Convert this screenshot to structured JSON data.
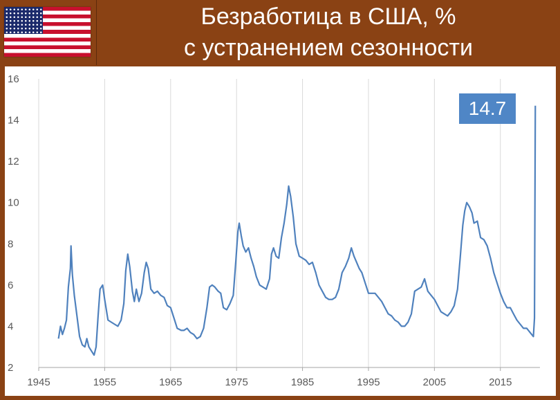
{
  "header": {
    "title_line1": "Безработица в США, %",
    "title_line2": "с устранением сезонности",
    "flag_icon": "us-flag-icon"
  },
  "colors": {
    "background": "#8a4214",
    "line": "#4f81bd",
    "annotation": "#4f86c6",
    "grid": "#d9d9d9"
  },
  "chart_data": {
    "type": "line",
    "title": "Безработица в США, %",
    "subtitle": "с устранением сезонности",
    "xlabel": "",
    "ylabel": "",
    "xlim": [
      1945,
      2021
    ],
    "ylim": [
      2,
      16
    ],
    "x_ticks": [
      1945,
      1955,
      1965,
      1975,
      1985,
      1995,
      2005,
      2015
    ],
    "y_ticks": [
      2,
      4,
      6,
      8,
      10,
      12,
      14,
      16
    ],
    "grid": "vertical",
    "legend": "none",
    "annotation": {
      "x": 2020.3,
      "y": 14.7,
      "label": "14.7"
    },
    "series": [
      {
        "points": [
          [
            1948.0,
            3.4
          ],
          [
            1948.3,
            4.0
          ],
          [
            1948.6,
            3.6
          ],
          [
            1948.9,
            3.9
          ],
          [
            1949.2,
            4.3
          ],
          [
            1949.5,
            5.9
          ],
          [
            1949.8,
            6.8
          ],
          [
            1949.9,
            7.9
          ],
          [
            1950.1,
            6.5
          ],
          [
            1950.4,
            5.5
          ],
          [
            1950.8,
            4.5
          ],
          [
            1951.2,
            3.5
          ],
          [
            1951.6,
            3.1
          ],
          [
            1952.0,
            3.0
          ],
          [
            1952.3,
            3.4
          ],
          [
            1952.6,
            3.0
          ],
          [
            1953.0,
            2.8
          ],
          [
            1953.4,
            2.6
          ],
          [
            1953.7,
            3.0
          ],
          [
            1954.0,
            4.5
          ],
          [
            1954.3,
            5.8
          ],
          [
            1954.7,
            6.0
          ],
          [
            1955.0,
            5.3
          ],
          [
            1955.5,
            4.3
          ],
          [
            1956.0,
            4.2
          ],
          [
            1956.5,
            4.1
          ],
          [
            1957.0,
            4.0
          ],
          [
            1957.5,
            4.3
          ],
          [
            1957.9,
            5.1
          ],
          [
            1958.2,
            6.7
          ],
          [
            1958.5,
            7.5
          ],
          [
            1958.8,
            6.9
          ],
          [
            1959.2,
            5.7
          ],
          [
            1959.5,
            5.2
          ],
          [
            1959.8,
            5.8
          ],
          [
            1960.2,
            5.2
          ],
          [
            1960.6,
            5.6
          ],
          [
            1961.0,
            6.6
          ],
          [
            1961.3,
            7.1
          ],
          [
            1961.6,
            6.8
          ],
          [
            1962.0,
            5.8
          ],
          [
            1962.5,
            5.6
          ],
          [
            1963.0,
            5.7
          ],
          [
            1963.5,
            5.5
          ],
          [
            1964.0,
            5.4
          ],
          [
            1964.5,
            5.0
          ],
          [
            1965.0,
            4.9
          ],
          [
            1965.5,
            4.4
          ],
          [
            1966.0,
            3.9
          ],
          [
            1966.6,
            3.8
          ],
          [
            1967.0,
            3.8
          ],
          [
            1967.5,
            3.9
          ],
          [
            1968.0,
            3.7
          ],
          [
            1968.5,
            3.6
          ],
          [
            1969.0,
            3.4
          ],
          [
            1969.5,
            3.5
          ],
          [
            1970.0,
            3.9
          ],
          [
            1970.5,
            4.9
          ],
          [
            1970.9,
            5.9
          ],
          [
            1971.3,
            6.0
          ],
          [
            1971.7,
            5.9
          ],
          [
            1972.2,
            5.7
          ],
          [
            1972.6,
            5.6
          ],
          [
            1973.0,
            4.9
          ],
          [
            1973.5,
            4.8
          ],
          [
            1974.0,
            5.1
          ],
          [
            1974.5,
            5.5
          ],
          [
            1974.9,
            7.2
          ],
          [
            1975.2,
            8.6
          ],
          [
            1975.4,
            9.0
          ],
          [
            1975.7,
            8.4
          ],
          [
            1976.0,
            7.9
          ],
          [
            1976.4,
            7.6
          ],
          [
            1976.8,
            7.8
          ],
          [
            1977.2,
            7.3
          ],
          [
            1977.6,
            6.9
          ],
          [
            1978.0,
            6.4
          ],
          [
            1978.5,
            6.0
          ],
          [
            1979.0,
            5.9
          ],
          [
            1979.5,
            5.8
          ],
          [
            1980.0,
            6.3
          ],
          [
            1980.3,
            7.5
          ],
          [
            1980.6,
            7.8
          ],
          [
            1981.0,
            7.4
          ],
          [
            1981.4,
            7.3
          ],
          [
            1981.8,
            8.3
          ],
          [
            1982.2,
            9.0
          ],
          [
            1982.6,
            9.9
          ],
          [
            1982.9,
            10.8
          ],
          [
            1983.2,
            10.3
          ],
          [
            1983.6,
            9.3
          ],
          [
            1984.0,
            8.0
          ],
          [
            1984.5,
            7.4
          ],
          [
            1985.0,
            7.3
          ],
          [
            1985.5,
            7.2
          ],
          [
            1986.0,
            7.0
          ],
          [
            1986.5,
            7.1
          ],
          [
            1987.0,
            6.6
          ],
          [
            1987.5,
            6.0
          ],
          [
            1988.0,
            5.7
          ],
          [
            1988.5,
            5.4
          ],
          [
            1989.0,
            5.3
          ],
          [
            1989.5,
            5.3
          ],
          [
            1990.0,
            5.4
          ],
          [
            1990.5,
            5.8
          ],
          [
            1991.0,
            6.6
          ],
          [
            1991.5,
            6.9
          ],
          [
            1992.0,
            7.3
          ],
          [
            1992.4,
            7.8
          ],
          [
            1992.8,
            7.4
          ],
          [
            1993.2,
            7.1
          ],
          [
            1993.6,
            6.8
          ],
          [
            1994.0,
            6.6
          ],
          [
            1994.5,
            6.1
          ],
          [
            1995.0,
            5.6
          ],
          [
            1995.5,
            5.6
          ],
          [
            1996.0,
            5.6
          ],
          [
            1996.5,
            5.4
          ],
          [
            1997.0,
            5.2
          ],
          [
            1997.5,
            4.9
          ],
          [
            1998.0,
            4.6
          ],
          [
            1998.5,
            4.5
          ],
          [
            1999.0,
            4.3
          ],
          [
            1999.5,
            4.2
          ],
          [
            2000.0,
            4.0
          ],
          [
            2000.5,
            4.0
          ],
          [
            2001.0,
            4.2
          ],
          [
            2001.5,
            4.6
          ],
          [
            2002.0,
            5.7
          ],
          [
            2002.5,
            5.8
          ],
          [
            2003.0,
            5.9
          ],
          [
            2003.5,
            6.3
          ],
          [
            2004.0,
            5.7
          ],
          [
            2004.5,
            5.5
          ],
          [
            2005.0,
            5.3
          ],
          [
            2005.5,
            5.0
          ],
          [
            2006.0,
            4.7
          ],
          [
            2006.5,
            4.6
          ],
          [
            2007.0,
            4.5
          ],
          [
            2007.5,
            4.7
          ],
          [
            2008.0,
            5.0
          ],
          [
            2008.5,
            5.8
          ],
          [
            2008.9,
            7.3
          ],
          [
            2009.3,
            8.9
          ],
          [
            2009.6,
            9.6
          ],
          [
            2009.9,
            10.0
          ],
          [
            2010.3,
            9.8
          ],
          [
            2010.7,
            9.5
          ],
          [
            2011.0,
            9.0
          ],
          [
            2011.5,
            9.1
          ],
          [
            2012.0,
            8.3
          ],
          [
            2012.5,
            8.2
          ],
          [
            2013.0,
            7.9
          ],
          [
            2013.5,
            7.3
          ],
          [
            2014.0,
            6.6
          ],
          [
            2014.5,
            6.1
          ],
          [
            2015.0,
            5.6
          ],
          [
            2015.5,
            5.2
          ],
          [
            2016.0,
            4.9
          ],
          [
            2016.5,
            4.9
          ],
          [
            2017.0,
            4.6
          ],
          [
            2017.5,
            4.3
          ],
          [
            2018.0,
            4.1
          ],
          [
            2018.5,
            3.9
          ],
          [
            2019.0,
            3.9
          ],
          [
            2019.5,
            3.7
          ],
          [
            2020.0,
            3.5
          ],
          [
            2020.17,
            4.4
          ],
          [
            2020.3,
            14.7
          ]
        ]
      }
    ]
  }
}
